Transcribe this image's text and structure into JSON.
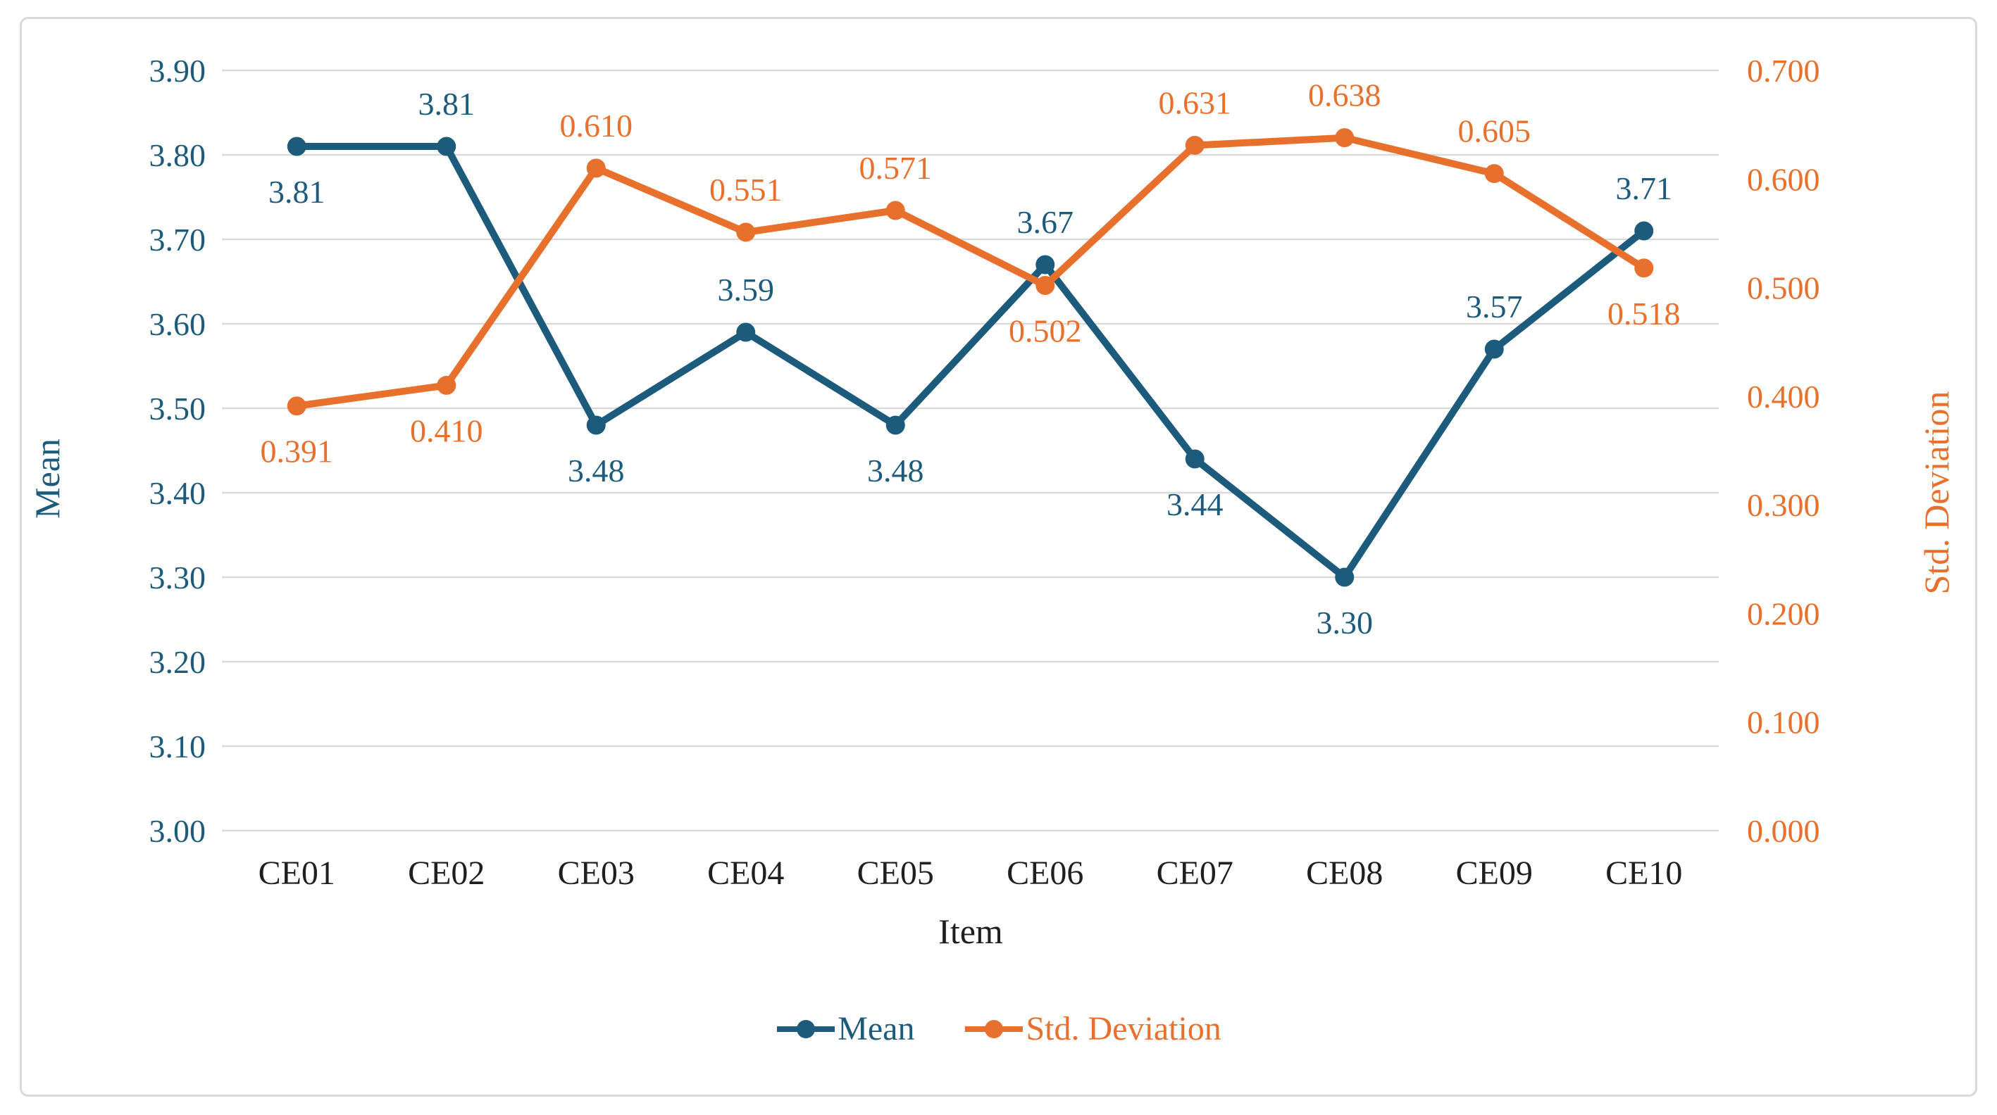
{
  "figure": {
    "background": "#ffffff",
    "border_color": "#d9d9d9"
  },
  "chart_data": {
    "type": "line",
    "title": "",
    "categories": [
      "CE01",
      "CE02",
      "CE03",
      "CE04",
      "CE05",
      "CE06",
      "CE07",
      "CE08",
      "CE09",
      "CE10"
    ],
    "xlabel": "Item",
    "x_tick_color": "#1f1f1f",
    "grid": {
      "show": true,
      "color": "#d9d9d9",
      "direction": "horizontal"
    },
    "legend": {
      "position": "bottom"
    },
    "left_axis": {
      "label": "Mean",
      "min": 3.0,
      "max": 3.9,
      "tick_labels": [
        "3.90",
        "3.80",
        "3.70",
        "3.60",
        "3.50",
        "3.40",
        "3.30",
        "3.20",
        "3.10",
        "3.00"
      ],
      "color": "#1d5b7c"
    },
    "right_axis": {
      "label": "Std. Deviation",
      "min": 0.0,
      "max": 0.7,
      "tick_labels": [
        "0.700",
        "0.600",
        "0.500",
        "0.400",
        "0.300",
        "0.200",
        "0.100",
        "0.000"
      ],
      "color": "#e8702d"
    },
    "series": [
      {
        "name": "Mean",
        "axis": "left",
        "color": "#1d5b7c",
        "values": [
          3.81,
          3.81,
          3.48,
          3.59,
          3.48,
          3.67,
          3.44,
          3.3,
          3.57,
          3.71
        ],
        "labels": [
          "3.81",
          "3.81",
          "3.48",
          "3.59",
          "3.48",
          "3.67",
          "3.44",
          "3.30",
          "3.57",
          "3.71"
        ],
        "label_side": [
          "below",
          "above",
          "below",
          "above",
          "below",
          "above",
          "below",
          "below",
          "above",
          "above"
        ]
      },
      {
        "name": "Std. Deviation",
        "axis": "right",
        "color": "#e8702d",
        "values": [
          0.391,
          0.41,
          0.61,
          0.551,
          0.571,
          0.502,
          0.631,
          0.638,
          0.605,
          0.518
        ],
        "labels": [
          "0.391",
          "0.410",
          "0.610",
          "0.551",
          "0.571",
          "0.502",
          "0.631",
          "0.638",
          "0.605",
          "0.518"
        ],
        "label_side": [
          "below",
          "below",
          "above",
          "above",
          "above",
          "below",
          "above",
          "above",
          "above",
          "below"
        ]
      }
    ]
  }
}
